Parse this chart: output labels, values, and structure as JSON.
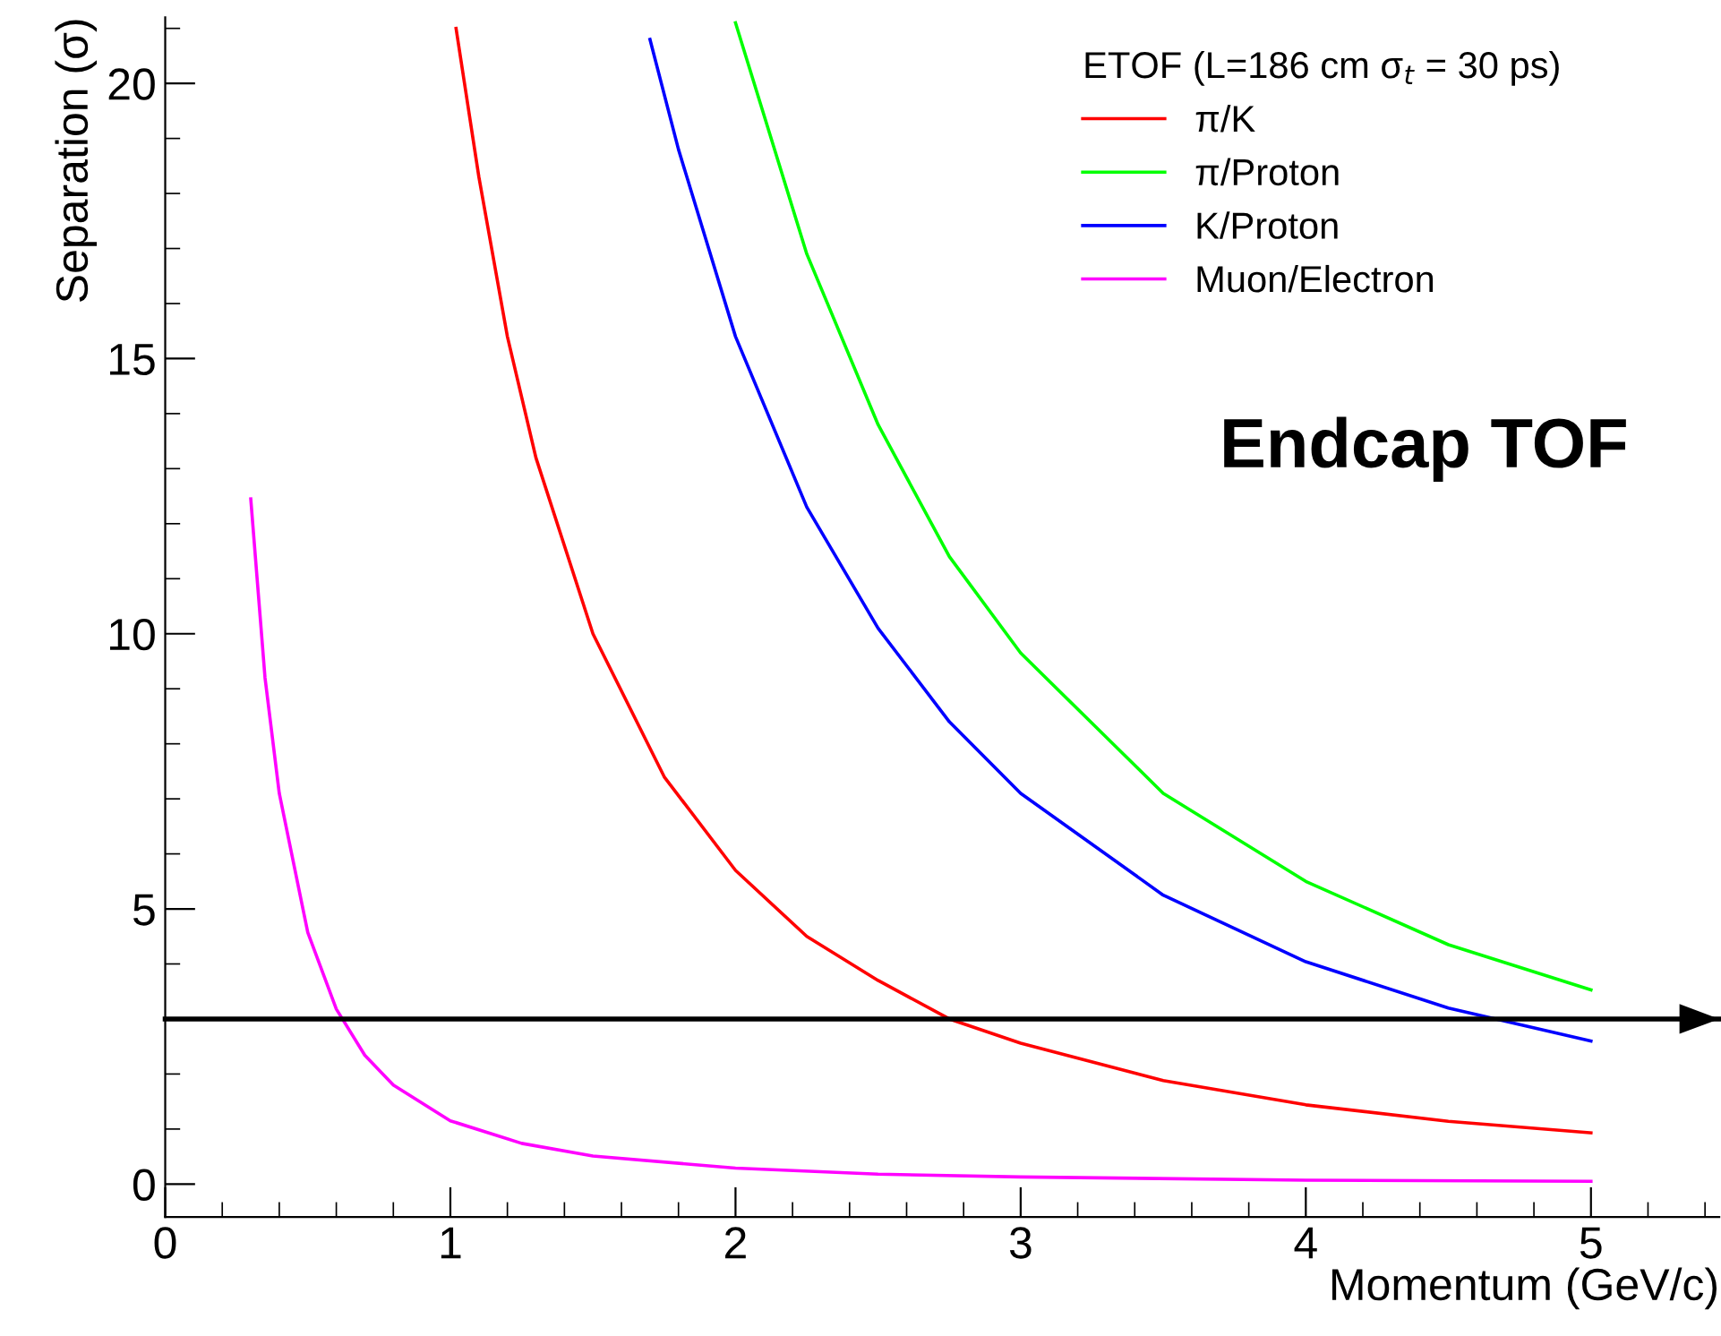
{
  "chart_data": {
    "type": "line",
    "xlabel": "Momentum (GeV/c)",
    "ylabel": "Separation (σ)",
    "legend_title": "ETOF (L=186 cm σ$_{t}$ = 30 ps)",
    "annotations": [
      "Endcap TOF"
    ],
    "xlim": [
      0,
      5.45
    ],
    "ylim": [
      -0.6,
      21.2
    ],
    "xticks": [
      0,
      1,
      2,
      3,
      4,
      5
    ],
    "yticks": [
      0,
      5,
      10,
      15,
      20
    ],
    "grid": false,
    "legend": "top right",
    "marker": "none",
    "line_style": "solid",
    "ref_lines": [
      {
        "axis": "y",
        "value": 3,
        "label": null,
        "color": "#000000"
      }
    ],
    "series": [
      {
        "name": "π/K",
        "color": "#ff0000",
        "x": [
          1.02,
          1.1,
          1.2,
          1.3,
          1.5,
          1.75,
          2,
          2.25,
          2.5,
          2.75,
          3,
          3.5,
          4,
          4.5,
          5
        ],
        "values": [
          21.0,
          18.3,
          15.4,
          13.2,
          10.0,
          7.4,
          5.7,
          4.5,
          3.7,
          3.0,
          2.56,
          1.88,
          1.44,
          1.14,
          0.93
        ]
      },
      {
        "name": "π/Proton",
        "color": "#00ff00",
        "x": [
          2,
          2.25,
          2.5,
          2.75,
          3,
          3.5,
          4,
          4.5,
          5
        ],
        "values": [
          21.1,
          16.9,
          13.8,
          11.4,
          9.65,
          7.1,
          5.5,
          4.35,
          3.53
        ]
      },
      {
        "name": "K/Proton",
        "color": "#0000ff",
        "x": [
          1.7,
          1.8,
          2,
          2.25,
          2.5,
          2.75,
          3,
          3.5,
          4,
          4.5,
          5
        ],
        "values": [
          20.8,
          18.8,
          15.4,
          12.3,
          10.1,
          8.4,
          7.1,
          5.25,
          4.04,
          3.2,
          2.6
        ]
      },
      {
        "name": "Muon/Electron",
        "color": "#ff00ff",
        "x": [
          0.3,
          0.35,
          0.4,
          0.5,
          0.6,
          0.7,
          0.8,
          1,
          1.25,
          1.5,
          2,
          2.5,
          3,
          4,
          5
        ],
        "values": [
          12.45,
          9.2,
          7.1,
          4.57,
          3.18,
          2.34,
          1.8,
          1.15,
          0.74,
          0.51,
          0.29,
          0.18,
          0.13,
          0.07,
          0.05
        ]
      }
    ]
  }
}
